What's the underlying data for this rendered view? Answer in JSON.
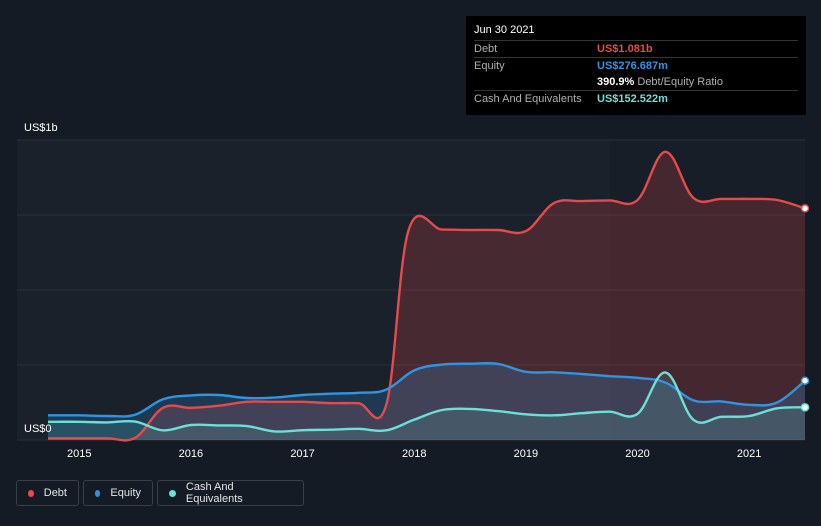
{
  "tooltip": {
    "date": "Jun 30 2021",
    "rows": [
      {
        "label": "Debt",
        "value": "US$1.081b",
        "color": "#e64b4b"
      },
      {
        "label": "Equity",
        "value": "US$276.687m",
        "color": "#2f95e0"
      },
      {
        "label": "",
        "value": "390.9%",
        "suffix": "Debt/Equity Ratio",
        "color": "#ffffff"
      },
      {
        "label": "Cash And Equivalents",
        "value": "US$152.522m",
        "color": "#6ce0d6"
      }
    ]
  },
  "legend": [
    {
      "label": "Debt",
      "color": "#e64b4b"
    },
    {
      "label": "Equity",
      "color": "#2f95e0"
    },
    {
      "label": "Cash And Equivalents",
      "color": "#6ce0d6"
    }
  ],
  "chart_data": {
    "type": "area",
    "title": "",
    "unit": "US$ millions",
    "ylim": [
      0,
      1400
    ],
    "yticks": [
      0,
      1000
    ],
    "ytick_labels": [
      "US$0",
      "US$1b"
    ],
    "xlim": [
      2014.72,
      2021.5
    ],
    "xticks": [
      2015,
      2016,
      2017,
      2018,
      2019,
      2020,
      2021
    ],
    "xtick_labels": [
      "2015",
      "2016",
      "2017",
      "2018",
      "2019",
      "2020",
      "2021"
    ],
    "grid": true,
    "series": [
      {
        "name": "Debt",
        "color": "#e64b4b",
        "points": [
          [
            2014.72,
            8
          ],
          [
            2015.0,
            8
          ],
          [
            2015.25,
            8
          ],
          [
            2015.5,
            10
          ],
          [
            2015.75,
            150
          ],
          [
            2016.0,
            150
          ],
          [
            2016.25,
            160
          ],
          [
            2016.5,
            178
          ],
          [
            2016.75,
            178
          ],
          [
            2017.0,
            178
          ],
          [
            2017.25,
            172
          ],
          [
            2017.5,
            172
          ],
          [
            2017.75,
            165
          ],
          [
            2017.95,
            980
          ],
          [
            2018.25,
            982
          ],
          [
            2018.5,
            980
          ],
          [
            2018.75,
            980
          ],
          [
            2019.0,
            975
          ],
          [
            2019.25,
            1105
          ],
          [
            2019.5,
            1115
          ],
          [
            2019.75,
            1118
          ],
          [
            2020.0,
            1120
          ],
          [
            2020.25,
            1345
          ],
          [
            2020.5,
            1130
          ],
          [
            2020.75,
            1125
          ],
          [
            2021.0,
            1125
          ],
          [
            2021.25,
            1120
          ],
          [
            2021.5,
            1081
          ]
        ]
      },
      {
        "name": "Equity",
        "color": "#2f95e0",
        "points": [
          [
            2014.72,
            115
          ],
          [
            2015.0,
            115
          ],
          [
            2015.25,
            112
          ],
          [
            2015.5,
            118
          ],
          [
            2015.75,
            190
          ],
          [
            2016.0,
            208
          ],
          [
            2016.25,
            210
          ],
          [
            2016.5,
            196
          ],
          [
            2016.75,
            198
          ],
          [
            2017.0,
            210
          ],
          [
            2017.25,
            216
          ],
          [
            2017.5,
            220
          ],
          [
            2017.75,
            235
          ],
          [
            2018.0,
            325
          ],
          [
            2018.25,
            352
          ],
          [
            2018.5,
            356
          ],
          [
            2018.75,
            355
          ],
          [
            2019.0,
            318
          ],
          [
            2019.25,
            316
          ],
          [
            2019.5,
            308
          ],
          [
            2019.75,
            298
          ],
          [
            2020.0,
            290
          ],
          [
            2020.25,
            268
          ],
          [
            2020.5,
            185
          ],
          [
            2020.75,
            180
          ],
          [
            2021.0,
            164
          ],
          [
            2021.25,
            175
          ],
          [
            2021.5,
            276.687
          ]
        ]
      },
      {
        "name": "Cash And Equivalents",
        "color": "#6ce0d6",
        "points": [
          [
            2014.72,
            85
          ],
          [
            2015.0,
            85
          ],
          [
            2015.25,
            82
          ],
          [
            2015.5,
            86
          ],
          [
            2015.75,
            45
          ],
          [
            2016.0,
            70
          ],
          [
            2016.25,
            68
          ],
          [
            2016.5,
            65
          ],
          [
            2016.75,
            40
          ],
          [
            2017.0,
            46
          ],
          [
            2017.25,
            48
          ],
          [
            2017.5,
            52
          ],
          [
            2017.75,
            45
          ],
          [
            2018.0,
            95
          ],
          [
            2018.25,
            140
          ],
          [
            2018.5,
            145
          ],
          [
            2018.75,
            135
          ],
          [
            2019.0,
            120
          ],
          [
            2019.25,
            115
          ],
          [
            2019.5,
            125
          ],
          [
            2019.75,
            132
          ],
          [
            2020.0,
            122
          ],
          [
            2020.25,
            315
          ],
          [
            2020.5,
            95
          ],
          [
            2020.75,
            108
          ],
          [
            2021.0,
            112
          ],
          [
            2021.25,
            148
          ],
          [
            2021.5,
            152.522
          ]
        ]
      }
    ]
  }
}
